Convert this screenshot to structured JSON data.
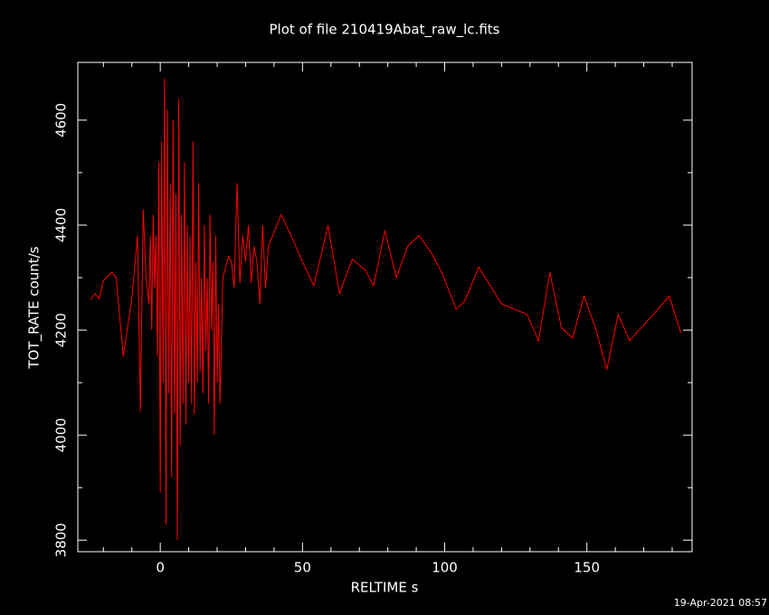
{
  "chart_data": {
    "type": "line",
    "title": "Plot of file 210419Abat_raw_lc.fits",
    "x_label": "RELTIME  s",
    "y_label": "TOT_RATE  count/s",
    "timestamp": "19-Apr-2021 08:57",
    "color": "#ff0000",
    "xlim": [
      -29,
      187
    ],
    "ylim": [
      3778,
      4710
    ],
    "xticks": [
      0,
      50,
      100,
      150
    ],
    "yticks": [
      3800,
      4000,
      4200,
      4400,
      4600
    ],
    "xminorticks": [
      -20,
      -10,
      10,
      20,
      30,
      40,
      60,
      70,
      80,
      90,
      110,
      120,
      130,
      140,
      160,
      170,
      180
    ],
    "yminorticks": [
      3900,
      4100,
      4300,
      4500
    ],
    "x": [
      -24.5,
      -23,
      -21.5,
      -20,
      -17,
      -15.5,
      -13,
      -10,
      -8,
      -7,
      -6,
      -5,
      -4,
      -3.5,
      -3,
      -2.5,
      -2,
      -1.5,
      -1,
      -0.5,
      0,
      0.5,
      1,
      1.5,
      2,
      2.5,
      3,
      3.5,
      4,
      4.5,
      5,
      5.5,
      6,
      6.5,
      7,
      7.5,
      8,
      8.5,
      9,
      9.5,
      10,
      10.5,
      11,
      11.5,
      12,
      12.5,
      13,
      13.5,
      14,
      14.5,
      15,
      15.5,
      16,
      16.5,
      17,
      17.5,
      18,
      18.5,
      19,
      19.5,
      20,
      20.5,
      21,
      22,
      23,
      24,
      25,
      26,
      27,
      28,
      29,
      30,
      31,
      32,
      33,
      34,
      35,
      36,
      37,
      38,
      42.5,
      46,
      50,
      54,
      59,
      63,
      67.5,
      72,
      75,
      79,
      83,
      87,
      91,
      95,
      99,
      104,
      107,
      112,
      116,
      120,
      129,
      133,
      137,
      141,
      145,
      149,
      153,
      157,
      161,
      165,
      175,
      179,
      183
    ],
    "values": [
      4258,
      4270,
      4260,
      4295,
      4310,
      4300,
      4150,
      4260,
      4380,
      4045,
      4430,
      4300,
      4250,
      4380,
      4200,
      4420,
      4280,
      4380,
      4150,
      4520,
      3890,
      4560,
      4100,
      4680,
      3830,
      4620,
      4080,
      4480,
      3920,
      4600,
      4040,
      4460,
      3800,
      4640,
      3980,
      4420,
      4060,
      4520,
      4020,
      4400,
      4100,
      4380,
      4060,
      4560,
      4040,
      4330,
      4100,
      4480,
      4120,
      4300,
      4080,
      4400,
      4160,
      4300,
      4060,
      4420,
      4200,
      4330,
      4000,
      4380,
      4100,
      4250,
      4060,
      4300,
      4320,
      4340,
      4330,
      4280,
      4480,
      4290,
      4380,
      4330,
      4400,
      4290,
      4360,
      4330,
      4250,
      4400,
      4280,
      4360,
      4420,
      4380,
      4330,
      4285,
      4400,
      4270,
      4335,
      4315,
      4285,
      4390,
      4300,
      4360,
      4380,
      4350,
      4310,
      4240,
      4255,
      4320,
      4285,
      4250,
      4230,
      4180,
      4310,
      4205,
      4185,
      4265,
      4205,
      4125,
      4230,
      4180,
      4240,
      4265,
      4195
    ]
  }
}
